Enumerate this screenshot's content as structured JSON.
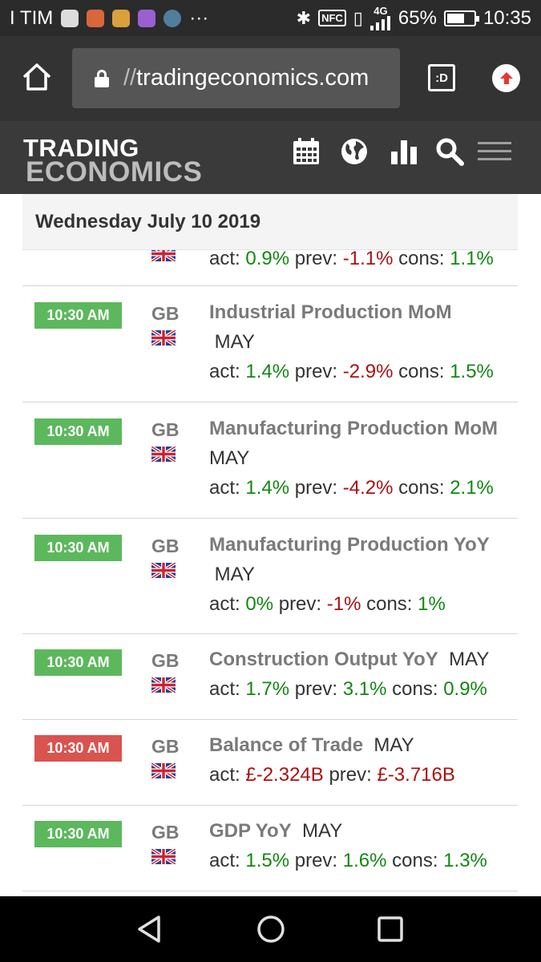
{
  "status_bar": {
    "carrier": "I TIM",
    "network": "4G",
    "battery": "65%",
    "battery_level": 0.65,
    "time": "10:35",
    "notification_icons": [
      "notification-icon-1",
      "notification-icon-2",
      "notification-icon-3",
      "notification-icon-4",
      "notification-icon-5"
    ],
    "more": "···"
  },
  "browser": {
    "url_scheme": "//",
    "url_host": "tradingeconomics.com",
    "tabs_label": ":D"
  },
  "site": {
    "logo_line1": "TRADING",
    "logo_line2": "ECONOMICS",
    "icons": [
      "calendar-icon",
      "globe-icon",
      "bar-chart-icon",
      "search-icon",
      "menu-icon"
    ]
  },
  "calendar": {
    "date": "Wednesday July 10 2019",
    "colors": {
      "positive": "#118811",
      "negative": "#aa1111",
      "badge_green": "#5cb85c",
      "badge_red": "#d9534f"
    },
    "partial_row": {
      "act_label": "act:",
      "act": "0.9%",
      "prev_label": "prev:",
      "prev": "-1.1%",
      "cons_label": "cons:",
      "cons": "1.1%"
    },
    "events": [
      {
        "time": "10:30 AM",
        "country": "GB",
        "name": "Industrial Production MoM",
        "ref": "MAY",
        "act_label": "act:",
        "act": "1.4%",
        "prev_label": "prev:",
        "prev": "-2.9%",
        "cons_label": "cons:",
        "cons": "1.5%"
      },
      {
        "time": "10:30 AM",
        "country": "GB",
        "name": "Manufacturing Production MoM",
        "ref": "MAY",
        "act_label": "act:",
        "act": "1.4%",
        "prev_label": "prev:",
        "prev": "-4.2%",
        "cons_label": "cons:",
        "cons": "2.1%"
      },
      {
        "time": "10:30 AM",
        "country": "GB",
        "name": "Manufacturing Production YoY",
        "ref": "MAY",
        "act_label": "act:",
        "act": "0%",
        "prev_label": "prev:",
        "prev": "-1%",
        "cons_label": "cons:",
        "cons": "1%"
      },
      {
        "time": "10:30 AM",
        "country": "GB",
        "name": "Construction Output YoY",
        "ref": "MAY",
        "act_label": "act:",
        "act": "1.7%",
        "prev_label": "prev:",
        "prev": "3.1%",
        "cons_label": "cons:",
        "cons": "0.9%"
      },
      {
        "time": "10:30 AM",
        "country": "GB",
        "name": "Balance of Trade",
        "ref": "MAY",
        "act_label": "act:",
        "act": "£-2.324B",
        "prev_label": "prev:",
        "prev": "£-3.716B"
      },
      {
        "time": "10:30 AM",
        "country": "GB",
        "name": "GDP YoY",
        "ref": "MAY",
        "act_label": "act:",
        "act": "1.5%",
        "prev_label": "prev:",
        "prev": "1.6%",
        "cons_label": "cons:",
        "cons": "1.3%"
      }
    ]
  },
  "nav": {
    "buttons": [
      "back-icon",
      "home-circle-icon",
      "recents-icon"
    ]
  }
}
